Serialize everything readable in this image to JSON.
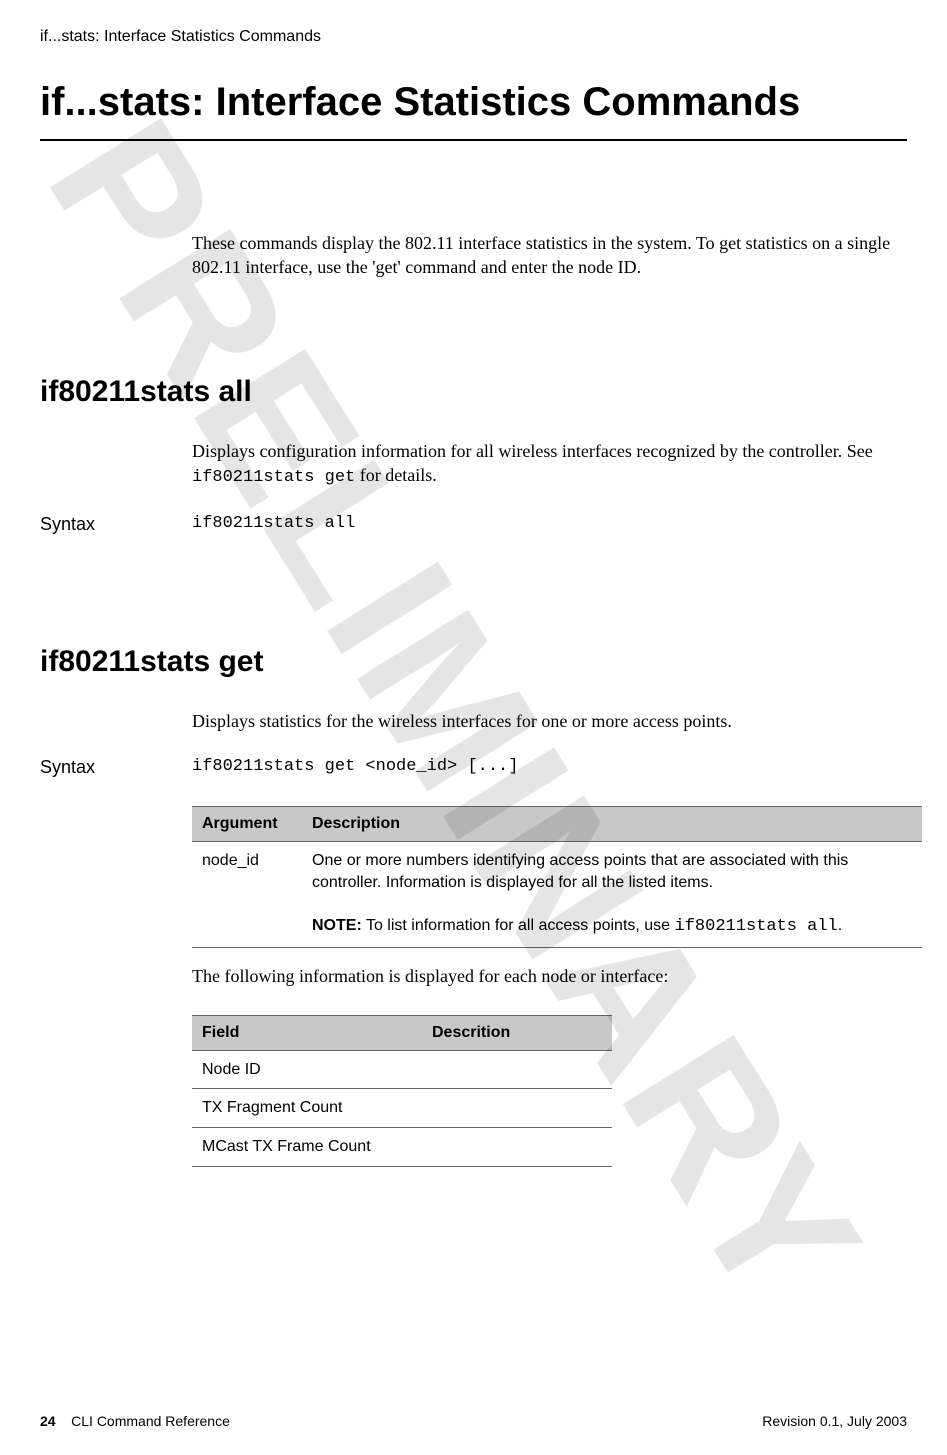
{
  "watermark_text": "PRELIMINARY",
  "running_header": "if...stats: Interface Statistics Commands",
  "title": "if...stats: Interface Statistics Commands",
  "intro": "These commands display the 802.11 interface statistics in the system. To get statistics on a single 802.11 interface, use the 'get' command and enter the node ID.",
  "section1": {
    "heading": "if80211stats all",
    "body_prefix": "Displays configuration information for all wireless interfaces recognized by the controller. See ",
    "body_code": "if80211stats get",
    "body_suffix": " for details.",
    "syntax_label": "Syntax",
    "syntax_value": "if80211stats all"
  },
  "section2": {
    "heading": "if80211stats get",
    "body": "Displays statistics for the wireless interfaces for one or more access points.",
    "syntax_label": "Syntax",
    "syntax_value": "if80211stats get <node_id> [...]"
  },
  "arg_table": {
    "headers": [
      "Argument",
      "Description"
    ],
    "row": {
      "arg": "node_id",
      "desc_line1": "One or more numbers identifying access points that are associated with this controller. Information is displayed for all the listed items.",
      "note_label": "NOTE:",
      "note_text": "  To list information for all ",
      "note_mid": "access points",
      "note_text2": ", use ",
      "note_code": "if80211stats all",
      "note_end": "."
    }
  },
  "after_table_text": "The following information is displayed for each node or interface:",
  "field_table": {
    "headers": [
      "Field",
      "Descrition"
    ],
    "rows": [
      [
        "Node ID",
        ""
      ],
      [
        "TX Fragment Count",
        ""
      ],
      [
        "MCast TX Frame Count",
        ""
      ]
    ]
  },
  "footer": {
    "page_number": "24",
    "doc_title": "CLI Command Reference",
    "revision": "Revision 0.1, July 2003"
  }
}
